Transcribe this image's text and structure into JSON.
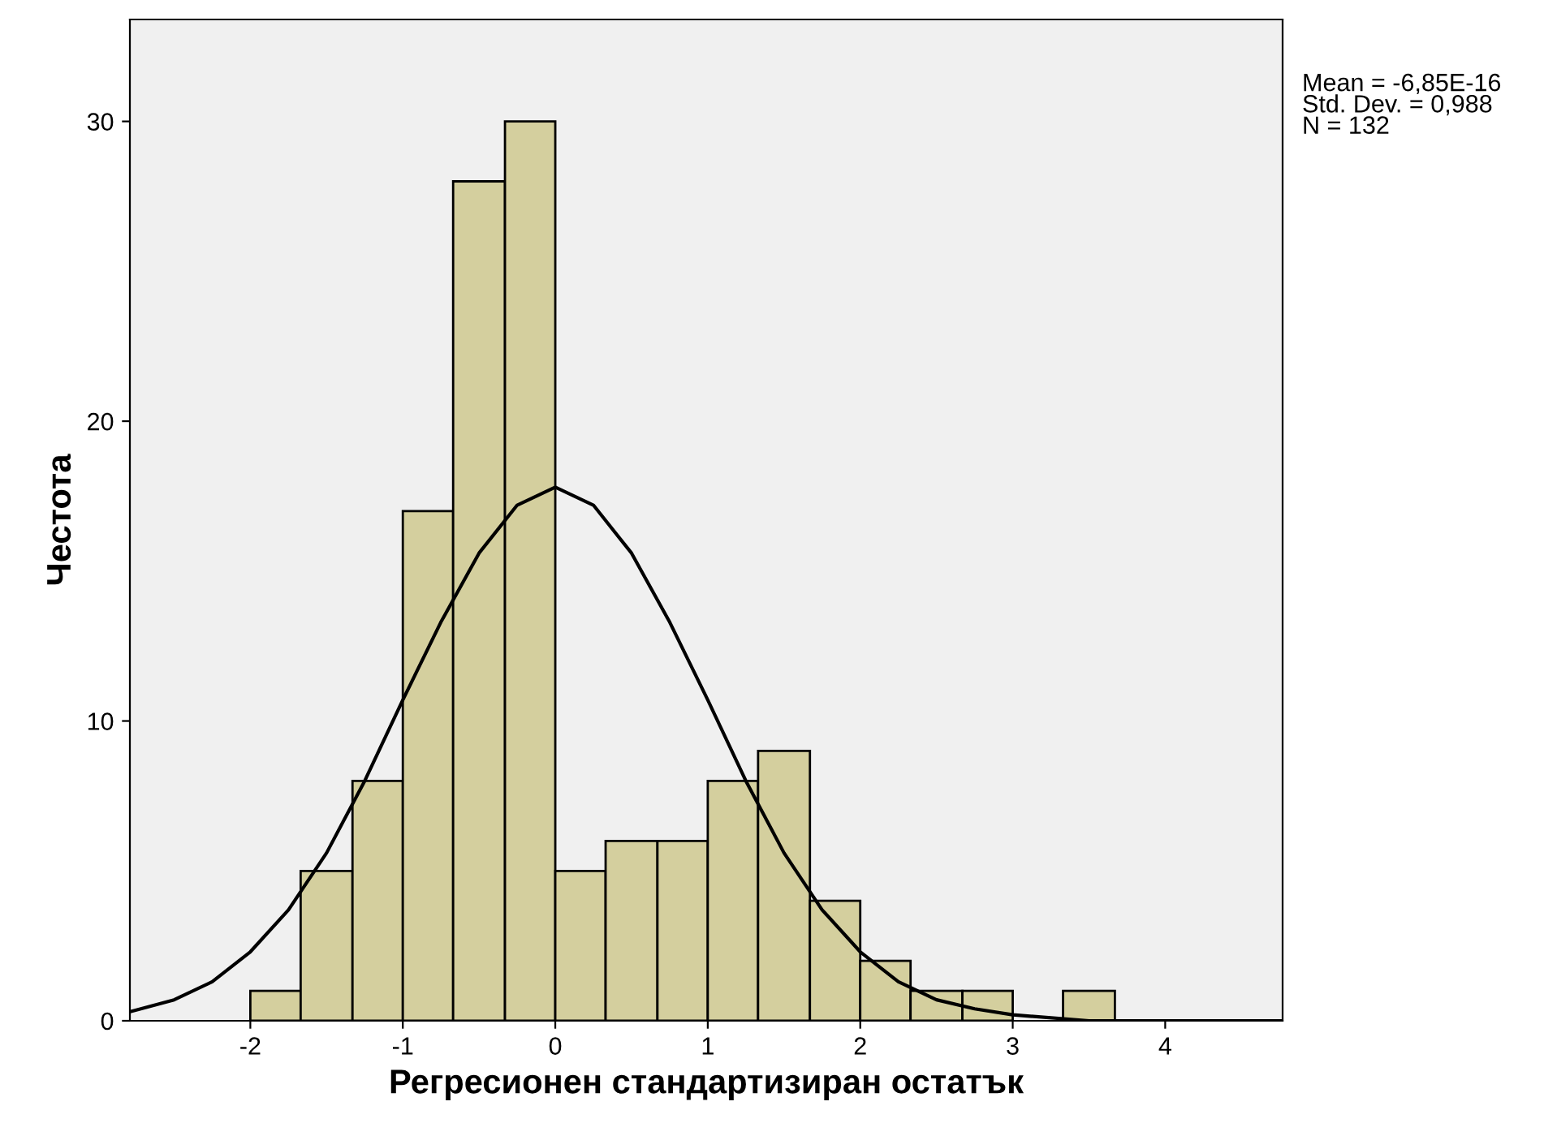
{
  "chart_data": {
    "type": "histogram",
    "xlabel": "Регресионен стандартизиран остатък",
    "ylabel": "Честота",
    "bins": [
      -2,
      -1.67,
      -1.33,
      -1,
      -0.67,
      -0.33,
      0,
      0.33,
      0.67,
      1,
      1.33,
      1.67,
      2,
      2.33,
      2.67,
      3,
      3.33,
      3.67
    ],
    "values": [
      1,
      5,
      8,
      17,
      28,
      30,
      5,
      6,
      6,
      8,
      9,
      4,
      2,
      1,
      1,
      0,
      1
    ],
    "color": "#d4cf9e",
    "series": [
      {
        "type": "line",
        "color": "#000000",
        "x": [
          -2.79,
          -2.5,
          -2.25,
          -2,
          -1.75,
          -1.5,
          -1.25,
          -1,
          -0.75,
          -0.5,
          -0.25,
          0,
          0.25,
          0.5,
          0.75,
          1,
          1.25,
          1.5,
          1.75,
          2,
          2.25,
          2.5,
          2.75,
          3,
          3.5,
          4,
          4.77
        ],
        "values": [
          0.3,
          0.7,
          1.3,
          2.3,
          3.7,
          5.6,
          8.0,
          10.7,
          13.3,
          15.6,
          17.2,
          17.8,
          17.2,
          15.6,
          13.3,
          10.7,
          8.0,
          5.6,
          3.7,
          2.3,
          1.3,
          0.7,
          0.4,
          0.2,
          0,
          0,
          0
        ]
      }
    ],
    "xlim": [
      -2.79,
      4.77
    ],
    "xticks": [
      -2,
      -1,
      0,
      1,
      2,
      3,
      4
    ],
    "ylim": [
      0,
      33.4
    ],
    "yticks": [
      0,
      10,
      20,
      30
    ],
    "grid": false,
    "annotations": [
      "Mean = -6,85E-16\nStd. Dev. = 0,988\nN = 132"
    ]
  }
}
